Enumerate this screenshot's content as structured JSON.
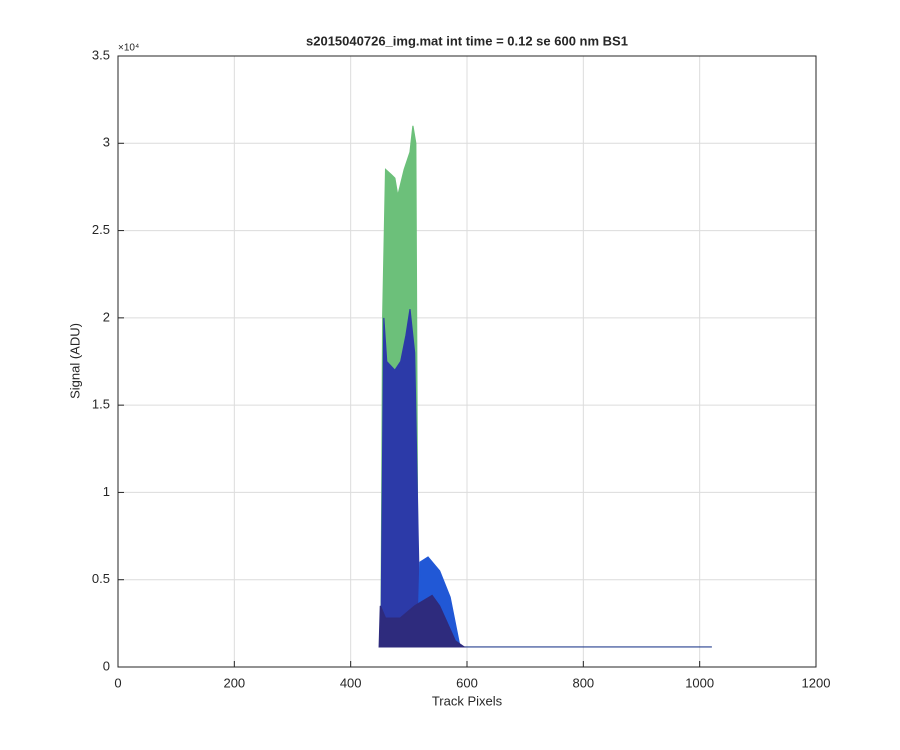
{
  "chart_data": {
    "type": "area",
    "title": "s2015040726_img.mat int time = 0.12 se  600 nm BS1",
    "xlabel": "Track Pixels",
    "ylabel": "Signal (ADU)",
    "y_multiplier": "×10⁴",
    "xlim": [
      0,
      1200
    ],
    "xticks": [
      0,
      200,
      400,
      600,
      800,
      1000,
      1200
    ],
    "ylim": [
      0,
      35000
    ],
    "yticks": [
      0,
      {
        "value": 5000,
        "label": "0.5"
      },
      {
        "value": 10000,
        "label": "1"
      },
      {
        "value": 15000,
        "label": "1.5"
      },
      {
        "value": 20000,
        "label": "2"
      },
      {
        "value": 25000,
        "label": "2.5"
      },
      {
        "value": 30000,
        "label": "3"
      },
      {
        "value": 35000,
        "label": "3.5"
      }
    ],
    "grid": true,
    "series": [
      {
        "color": "#27408f",
        "x": [
          450,
          1021
        ],
        "values": [
          1150,
          1150
        ]
      },
      {
        "color": "#6cc07a",
        "x": [
          452,
          455,
          460,
          470,
          476,
          481,
          492,
          502,
          507,
          512,
          516
        ],
        "values": [
          1150,
          20000,
          28500,
          28200,
          28000,
          27000,
          28500,
          29500,
          31000,
          30000,
          1150
        ]
      },
      {
        "color": "#2c3aa8",
        "x": [
          452,
          457,
          462,
          476,
          486,
          495,
          502,
          510,
          516,
          520
        ],
        "values": [
          1150,
          20000,
          17500,
          17000,
          17500,
          19000,
          20500,
          18000,
          7500,
          1150
        ]
      },
      {
        "color": "#2158d6",
        "x": [
          515,
          519,
          533,
          553,
          571,
          588
        ],
        "values": [
          1150,
          6000,
          6300,
          5500,
          4000,
          1150
        ]
      },
      {
        "color": "#2e2b7d",
        "x": [
          449,
          451,
          460,
          485,
          510,
          540,
          553,
          580,
          595
        ],
        "values": [
          1150,
          3500,
          2800,
          2800,
          3500,
          4100,
          3500,
          1500,
          1150
        ]
      }
    ]
  }
}
